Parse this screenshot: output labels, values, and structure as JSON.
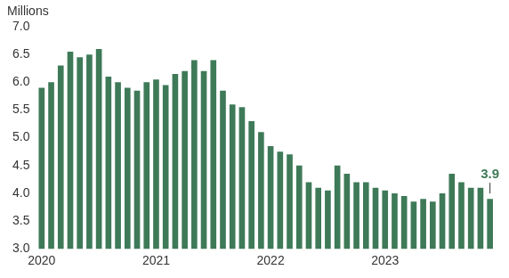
{
  "chart_data": {
    "type": "bar",
    "y_label": "Millions",
    "categories": [
      "2020",
      null,
      null,
      null,
      null,
      null,
      null,
      null,
      null,
      null,
      null,
      null,
      "2021",
      null,
      null,
      null,
      null,
      null,
      null,
      null,
      null,
      null,
      null,
      null,
      "2022",
      null,
      null,
      null,
      null,
      null,
      null,
      null,
      null,
      null,
      null,
      null,
      "2023",
      null,
      null,
      null,
      null,
      null,
      null,
      null,
      null,
      null,
      null,
      null
    ],
    "values": [
      5.9,
      6.0,
      6.3,
      6.55,
      6.45,
      6.5,
      6.6,
      6.1,
      6.0,
      5.9,
      5.85,
      6.0,
      6.05,
      5.95,
      6.15,
      6.2,
      6.4,
      6.2,
      6.4,
      5.85,
      5.6,
      5.55,
      5.3,
      5.1,
      4.85,
      4.75,
      4.7,
      4.5,
      4.2,
      4.1,
      4.05,
      4.5,
      4.35,
      4.2,
      4.2,
      4.1,
      4.05,
      4.0,
      3.95,
      3.85,
      3.9,
      3.85,
      4.0,
      4.35,
      4.2,
      4.1,
      4.1,
      3.9
    ],
    "color": "#3e7a58",
    "ylim": [
      3,
      7
    ],
    "yticks": [
      {
        "value": 3,
        "label": "3.0"
      },
      {
        "value": 3.5,
        "label": "3.5"
      },
      {
        "value": 4,
        "label": "4.0"
      },
      {
        "value": 4.5,
        "label": "4.5"
      },
      {
        "value": 5,
        "label": "5.0"
      },
      {
        "value": 5.5,
        "label": "5.5"
      },
      {
        "value": 6,
        "label": "6.0"
      },
      {
        "value": 6.5,
        "label": "6.5"
      },
      {
        "value": 7,
        "label": "7.0"
      }
    ],
    "grid": false,
    "annotations": [
      {
        "text": "3.9",
        "category_index": 47,
        "value": 3.9
      }
    ]
  }
}
